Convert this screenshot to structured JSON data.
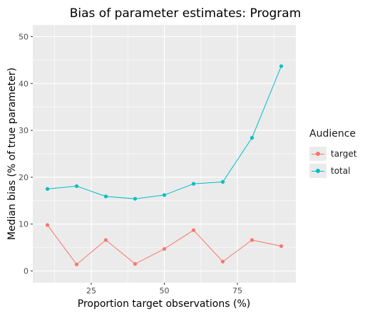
{
  "chart_data": {
    "type": "line",
    "title": "Bias of parameter estimates: Program",
    "xlabel": "Proportion target observations (%)",
    "ylabel": "Median bias (% of true parameter)",
    "xlim": [
      5,
      95
    ],
    "ylim": [
      -2.5,
      52.5
    ],
    "x_ticks": [
      25,
      50,
      75
    ],
    "x_tick_labels": [
      "25",
      "50",
      "75"
    ],
    "y_ticks": [
      0,
      10,
      20,
      30,
      40,
      50
    ],
    "y_tick_labels": [
      "0",
      "10",
      "20",
      "30",
      "40",
      "50"
    ],
    "grid": true,
    "legend_position": "right",
    "legend_title": "Audience",
    "x": [
      10,
      20,
      30,
      40,
      50,
      60,
      70,
      80,
      90
    ],
    "series": [
      {
        "name": "target",
        "color": "#f8766d",
        "values": [
          9.8,
          1.4,
          6.6,
          1.5,
          4.7,
          8.7,
          2.0,
          6.6,
          5.3
        ]
      },
      {
        "name": "total",
        "color": "#00bfc4",
        "values": [
          17.5,
          18.1,
          15.9,
          15.4,
          16.2,
          18.6,
          19.0,
          28.4,
          43.7
        ]
      }
    ]
  }
}
